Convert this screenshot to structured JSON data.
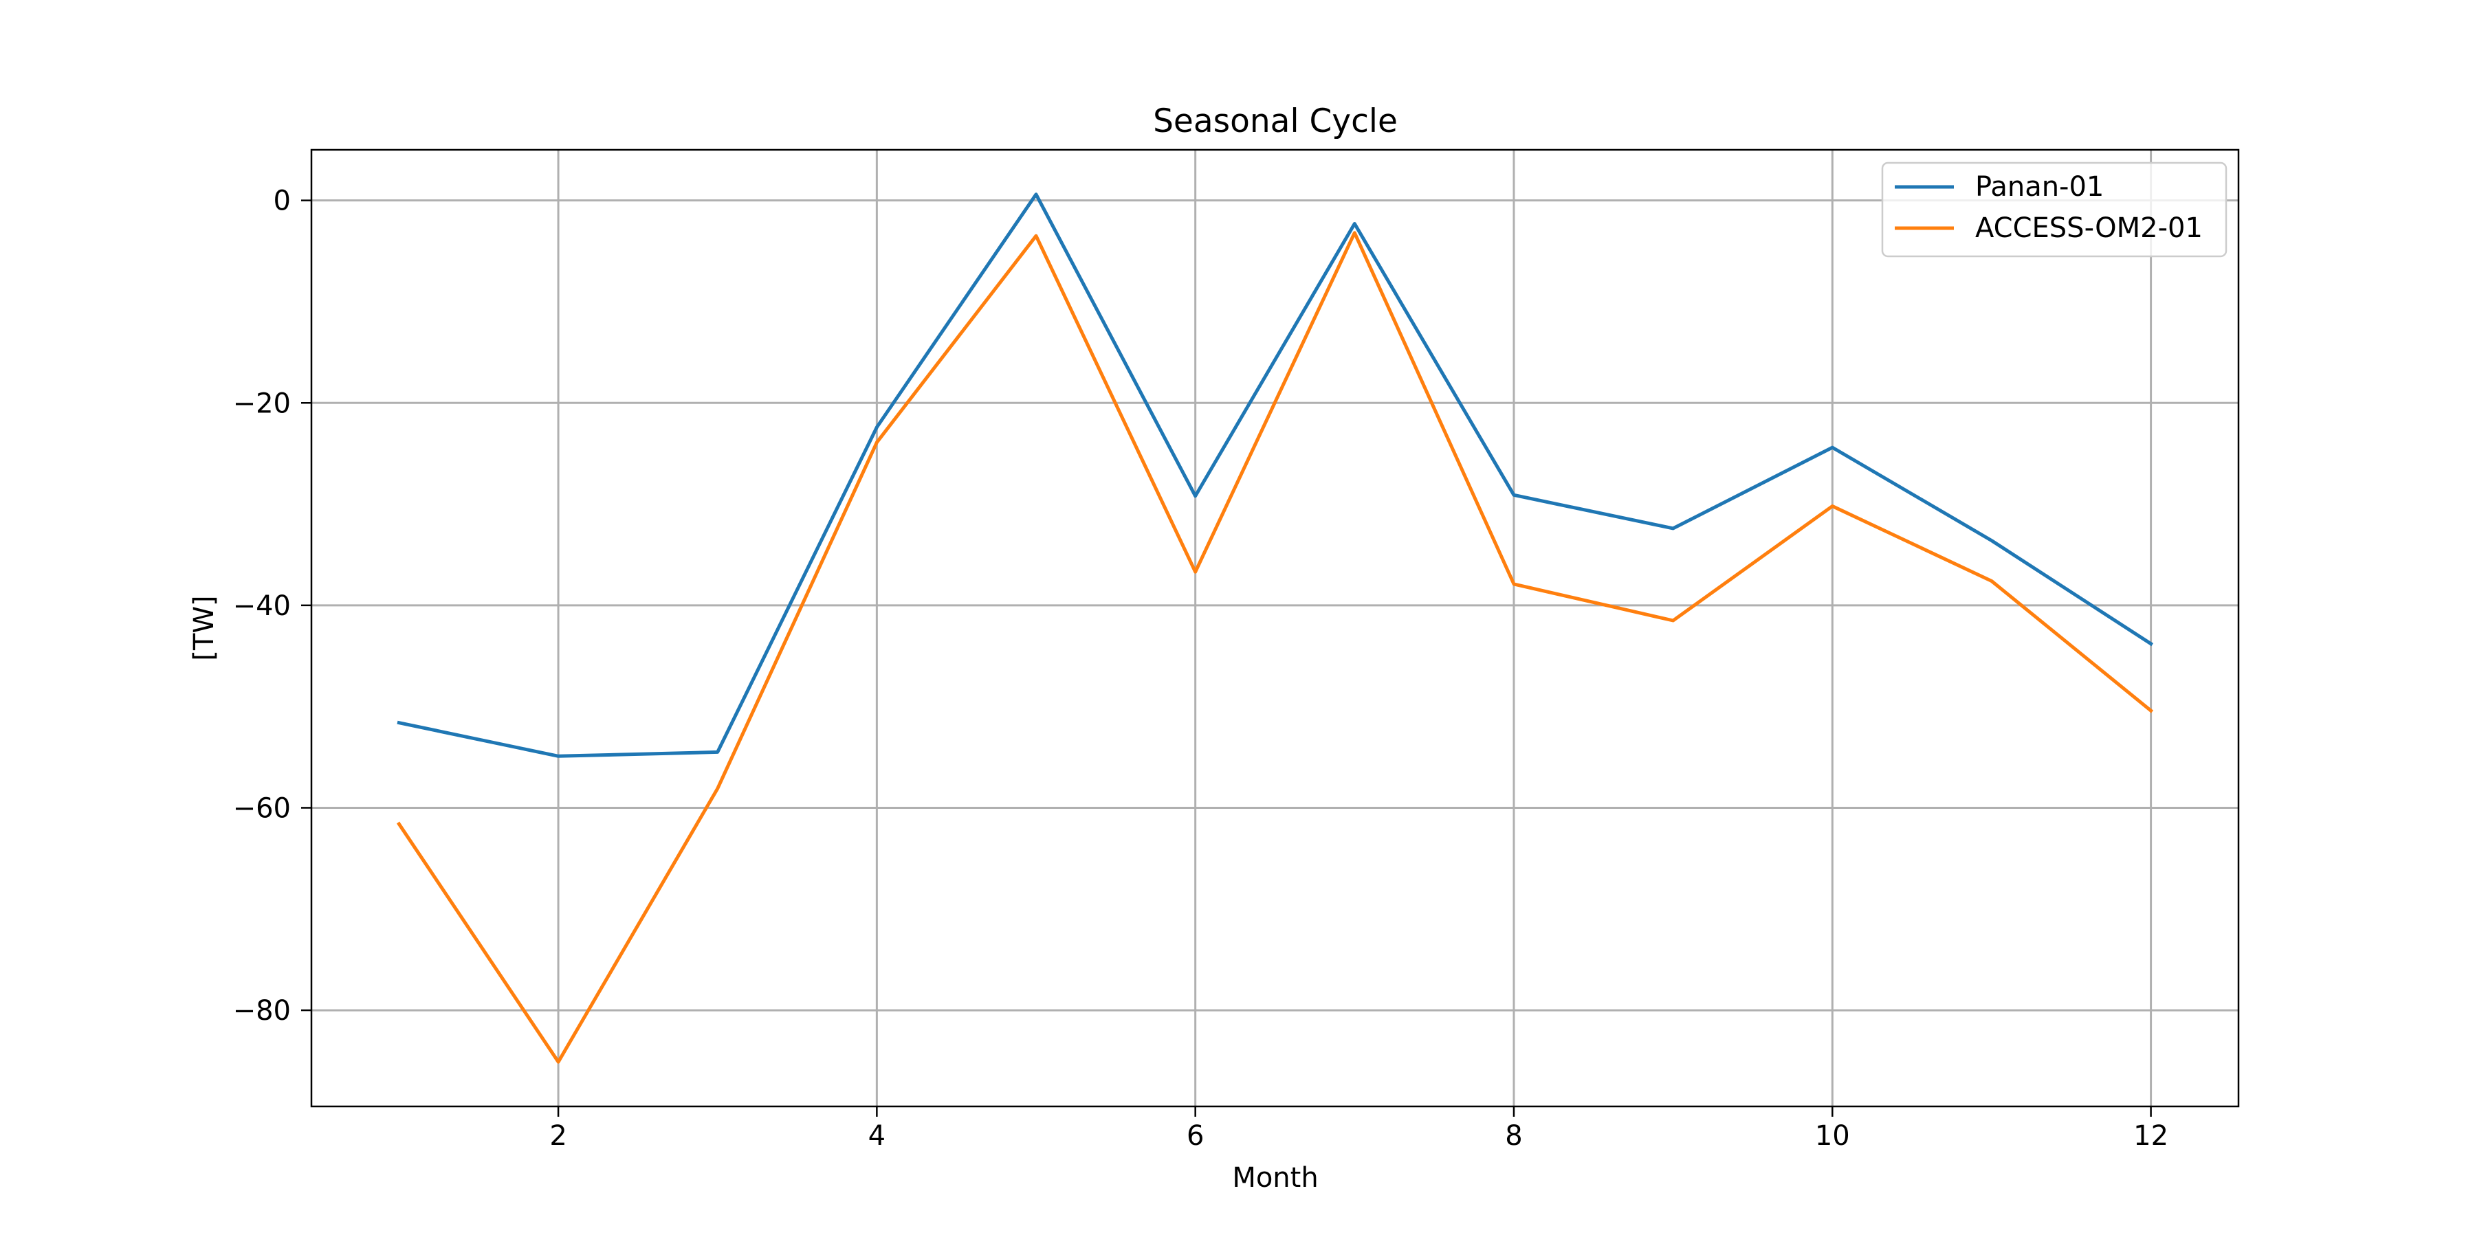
{
  "chart_data": {
    "type": "line",
    "title": "Seasonal Cycle",
    "xlabel": "Month",
    "ylabel": "[TW]",
    "x": [
      1,
      2,
      3,
      4,
      5,
      6,
      7,
      8,
      9,
      10,
      11,
      12
    ],
    "xlim": [
      0.45,
      12.55
    ],
    "ylim": [
      -89.5,
      5.0
    ],
    "xticks": [
      2,
      4,
      6,
      8,
      10,
      12
    ],
    "yticks": [
      0,
      -20,
      -40,
      -60,
      -80
    ],
    "xtick_labels": [
      "2",
      "4",
      "6",
      "8",
      "10",
      "12"
    ],
    "ytick_labels": [
      "0",
      "−20",
      "−40",
      "−60",
      "−80"
    ],
    "grid": true,
    "legend_position": "top-right",
    "series": [
      {
        "name": "Panan-01",
        "color": "#1f77b4",
        "values": [
          -51.6,
          -54.9,
          -54.5,
          -22.4,
          0.6,
          -29.2,
          -2.3,
          -29.1,
          -32.4,
          -24.4,
          -33.6,
          -43.8
        ]
      },
      {
        "name": "ACCESS-OM2-01",
        "color": "#ff7f0e",
        "values": [
          -61.6,
          -85.1,
          -58.1,
          -23.9,
          -3.5,
          -36.7,
          -3.2,
          -37.9,
          -41.5,
          -30.2,
          -37.6,
          -50.4
        ]
      }
    ]
  }
}
